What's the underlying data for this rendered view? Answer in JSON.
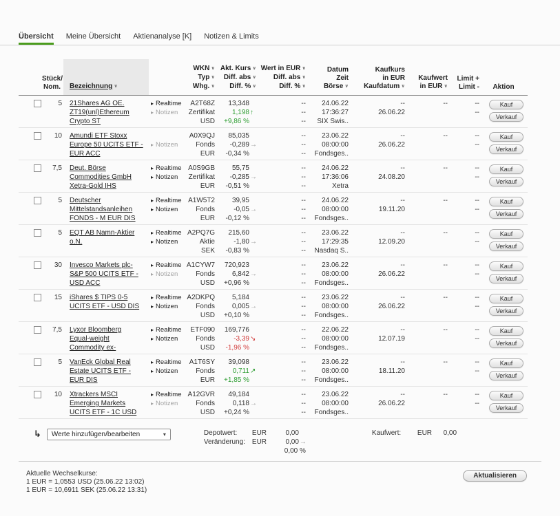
{
  "colors": {
    "accent_green": "#4a9c1d",
    "positive_green": "#2f9e33",
    "negative_red": "#d23b3b"
  },
  "tabs": [
    {
      "label": "Übersicht",
      "active": true
    },
    {
      "label": "Meine Übersicht",
      "active": false
    },
    {
      "label": "Aktienanalyse [K]",
      "active": false
    },
    {
      "label": "Notizen & Limits",
      "active": false
    }
  ],
  "table": {
    "header": [
      {
        "key": "select",
        "align": "left",
        "sortable": false,
        "lines": []
      },
      {
        "key": "qty",
        "align": "right",
        "sortable": false,
        "lines": [
          {
            "t": "Stück/"
          },
          {
            "t": "Nom."
          }
        ]
      },
      {
        "key": "name",
        "align": "left",
        "sortable": true,
        "highlight": true,
        "lines": [
          {
            "t": "Bezeichnung",
            "caret": true,
            "u": true
          }
        ]
      },
      {
        "key": "info",
        "align": "left",
        "sortable": false,
        "lines": []
      },
      {
        "key": "wkn",
        "align": "right",
        "sortable": true,
        "lines": [
          {
            "t": "WKN",
            "caret": true
          },
          {
            "t": "Typ",
            "caret": true
          },
          {
            "t": "Whg.",
            "caret": true
          }
        ]
      },
      {
        "key": "kurs",
        "align": "right",
        "sortable": true,
        "lines": [
          {
            "t": "Akt. Kurs",
            "caret": true
          },
          {
            "t": "Diff. abs",
            "caret": true
          },
          {
            "t": "Diff. %",
            "caret": true
          }
        ]
      },
      {
        "key": "wert",
        "align": "right",
        "sortable": true,
        "lines": [
          {
            "t": "Wert in EUR",
            "caret": true
          },
          {
            "t": "Diff. abs",
            "caret": true
          },
          {
            "t": "Diff. %",
            "caret": true
          }
        ]
      },
      {
        "key": "datum",
        "align": "right",
        "sortable": true,
        "lines": [
          {
            "t": "Datum"
          },
          {
            "t": "Zeit"
          },
          {
            "t": "Börse",
            "caret": true
          }
        ]
      },
      {
        "key": "kaufkurs",
        "align": "right",
        "sortable": true,
        "lines": [
          {
            "t": "Kaufkurs"
          },
          {
            "t": "in EUR"
          },
          {
            "t": "Kaufdatum",
            "caret": true
          }
        ]
      },
      {
        "key": "kaufwert",
        "align": "right",
        "sortable": true,
        "lines": [
          {
            "t": "Kaufwert"
          },
          {
            "t": "in EUR",
            "caret": true
          }
        ]
      },
      {
        "key": "limit",
        "align": "right",
        "sortable": false,
        "lines": [
          {
            "t": "Limit +"
          },
          {
            "t": "Limit -"
          }
        ]
      },
      {
        "key": "aktion",
        "align": "center",
        "sortable": false,
        "lines": [
          {
            "t": "Aktion"
          }
        ]
      }
    ],
    "action_labels": [
      "Kauf",
      "Verkauf"
    ],
    "rows": [
      {
        "qty": "5",
        "name": [
          "21Shares AG OE.",
          "ZT19(unl)Ethereum",
          "Crypto ST"
        ],
        "buttons": [
          {
            "label": "Realtime",
            "muted": false
          },
          {
            "label": "Notizen",
            "muted": true
          }
        ],
        "wkn": "A2T68Z",
        "typ": "Zertifikat",
        "whg": "USD",
        "kurs": "13,348",
        "diff_abs": "1,198",
        "arrow": "up",
        "trend": "up",
        "diff_pct": "+9,86 %",
        "wert": [
          "--",
          "--",
          "--"
        ],
        "datum": "24.06.22",
        "zeit": "17:36:27",
        "boerse": "SIX Swis..",
        "kaufkurs": "--",
        "kaufdatum": "26.06.22",
        "kaufwert": "--",
        "limit_plus": "--",
        "limit_minus": "--"
      },
      {
        "qty": "10",
        "name": [
          "Amundi ETF Stoxx",
          "Europe 50 UCITS ETF -",
          "EUR ACC"
        ],
        "buttons": [
          {
            "label": "Notizen",
            "muted": true
          }
        ],
        "wkn": "A0X9QJ",
        "typ": "Fonds",
        "whg": "EUR",
        "kurs": "85,035",
        "diff_abs": "-0,289",
        "arrow": "right",
        "trend": "neutral",
        "diff_pct": "-0,34 %",
        "wert": [
          "--",
          "--",
          "--"
        ],
        "datum": "23.06.22",
        "zeit": "08:00:00",
        "boerse": "Fondsges..",
        "kaufkurs": "--",
        "kaufdatum": "26.06.22",
        "kaufwert": "--",
        "limit_plus": "--",
        "limit_minus": "--"
      },
      {
        "qty": "7,5",
        "name": [
          "Deut. Börse",
          "Commodities GmbH",
          "Xetra-Gold IHS"
        ],
        "buttons": [
          {
            "label": "Realtime",
            "muted": false
          },
          {
            "label": "Notizen",
            "muted": false
          }
        ],
        "wkn": "A0S9GB",
        "typ": "Zertifikat",
        "whg": "EUR",
        "kurs": "55,75",
        "diff_abs": "-0,285",
        "arrow": "right",
        "trend": "neutral",
        "diff_pct": "-0,51 %",
        "wert": [
          "--",
          "--",
          "--"
        ],
        "datum": "24.06.22",
        "zeit": "17:36:06",
        "boerse": "Xetra",
        "kaufkurs": "--",
        "kaufdatum": "24.08.20",
        "kaufwert": "--",
        "limit_plus": "--",
        "limit_minus": "--"
      },
      {
        "qty": "5",
        "name": [
          "Deutscher",
          "Mittelstandsanleihen",
          "FONDS - M EUR DIS"
        ],
        "buttons": [
          {
            "label": "Realtime",
            "muted": false
          },
          {
            "label": "Notizen",
            "muted": false
          }
        ],
        "wkn": "A1W5T2",
        "typ": "Fonds",
        "whg": "EUR",
        "kurs": "39,95",
        "diff_abs": "-0,05",
        "arrow": "right",
        "trend": "neutral",
        "diff_pct": "-0,12 %",
        "wert": [
          "--",
          "--",
          "--"
        ],
        "datum": "24.06.22",
        "zeit": "08:00:00",
        "boerse": "Fondsges..",
        "kaufkurs": "--",
        "kaufdatum": "19.11.20",
        "kaufwert": "--",
        "limit_plus": "--",
        "limit_minus": "--"
      },
      {
        "qty": "5",
        "name": [
          "EQT AB Namn-Aktier",
          "o.N."
        ],
        "buttons": [
          {
            "label": "Realtime",
            "muted": false
          },
          {
            "label": "Notizen",
            "muted": false
          }
        ],
        "wkn": "A2PQ7G",
        "typ": "Aktie",
        "whg": "SEK",
        "kurs": "215,60",
        "diff_abs": "-1,80",
        "arrow": "right",
        "trend": "neutral",
        "diff_pct": "-0,83 %",
        "wert": [
          "--",
          "--",
          "--"
        ],
        "datum": "23.06.22",
        "zeit": "17:29:35",
        "boerse": "Nasdaq S..",
        "kaufkurs": "--",
        "kaufdatum": "12.09.20",
        "kaufwert": "--",
        "limit_plus": "--",
        "limit_minus": "--"
      },
      {
        "qty": "30",
        "name": [
          "Invesco Markets plc-",
          "S&P 500 UCITS ETF -",
          "USD ACC"
        ],
        "buttons": [
          {
            "label": "Realtime",
            "muted": false
          },
          {
            "label": "Notizen",
            "muted": true
          }
        ],
        "wkn": "A1CYW7",
        "typ": "Fonds",
        "whg": "USD",
        "kurs": "720,923",
        "diff_abs": "6,842",
        "arrow": "right",
        "trend": "neutral",
        "diff_pct": "+0,96 %",
        "wert": [
          "--",
          "--",
          "--"
        ],
        "datum": "23.06.22",
        "zeit": "08:00:00",
        "boerse": "Fondsges..",
        "kaufkurs": "--",
        "kaufdatum": "26.06.22",
        "kaufwert": "--",
        "limit_plus": "--",
        "limit_minus": "--"
      },
      {
        "qty": "15",
        "name": [
          "iShares $ TIPS 0-5",
          "UCITS ETF - USD DIS"
        ],
        "buttons": [
          {
            "label": "Realtime",
            "muted": false
          },
          {
            "label": "Notizen",
            "muted": false
          }
        ],
        "wkn": "A2DKPQ",
        "typ": "Fonds",
        "whg": "USD",
        "kurs": "5,184",
        "diff_abs": "0,005",
        "arrow": "right",
        "trend": "neutral",
        "diff_pct": "+0,10 %",
        "wert": [
          "--",
          "--",
          "--"
        ],
        "datum": "23.06.22",
        "zeit": "08:00:00",
        "boerse": "Fondsges..",
        "kaufkurs": "--",
        "kaufdatum": "26.06.22",
        "kaufwert": "--",
        "limit_plus": "--",
        "limit_minus": "--"
      },
      {
        "qty": "7,5",
        "name": [
          "Lyxor Bloomberg",
          "Equal-weight",
          "Commodity ex-"
        ],
        "buttons": [
          {
            "label": "Realtime",
            "muted": false
          },
          {
            "label": "Notizen",
            "muted": false
          }
        ],
        "wkn": "ETF090",
        "typ": "Fonds",
        "whg": "USD",
        "kurs": "169,776",
        "diff_abs": "-3,39",
        "arrow": "downright",
        "trend": "down",
        "diff_pct": "-1,96 %",
        "wert": [
          "--",
          "--",
          "--"
        ],
        "datum": "22.06.22",
        "zeit": "08:00:00",
        "boerse": "Fondsges..",
        "kaufkurs": "--",
        "kaufdatum": "12.07.19",
        "kaufwert": "--",
        "limit_plus": "--",
        "limit_minus": "--"
      },
      {
        "qty": "5",
        "name": [
          "VanEck Global Real",
          "Estate UCITS ETF -",
          "EUR DIS"
        ],
        "buttons": [
          {
            "label": "Realtime",
            "muted": false
          },
          {
            "label": "Notizen",
            "muted": false
          }
        ],
        "wkn": "A1T6SY",
        "typ": "Fonds",
        "whg": "EUR",
        "kurs": "39,098",
        "diff_abs": "0,711",
        "arrow": "upright",
        "trend": "up",
        "diff_pct": "+1,85 %",
        "wert": [
          "--",
          "--",
          "--"
        ],
        "datum": "23.06.22",
        "zeit": "08:00:00",
        "boerse": "Fondsges..",
        "kaufkurs": "--",
        "kaufdatum": "18.11.20",
        "kaufwert": "--",
        "limit_plus": "--",
        "limit_minus": "--"
      },
      {
        "qty": "10",
        "name": [
          "Xtrackers MSCI",
          "Emerging Markets",
          "UCITS ETF - 1C USD"
        ],
        "buttons": [
          {
            "label": "Realtime",
            "muted": false
          },
          {
            "label": "Notizen",
            "muted": true
          }
        ],
        "wkn": "A12GVR",
        "typ": "Fonds",
        "whg": "USD",
        "kurs": "49,184",
        "diff_abs": "0,118",
        "arrow": "right",
        "trend": "neutral",
        "diff_pct": "+0,24 %",
        "wert": [
          "--",
          "--",
          "--"
        ],
        "datum": "23.06.22",
        "zeit": "08:00:00",
        "boerse": "Fondsges..",
        "kaufkurs": "--",
        "kaufdatum": "26.06.22",
        "kaufwert": "--",
        "limit_plus": "--",
        "limit_minus": "--"
      }
    ]
  },
  "summary": {
    "select_label": "Werte hinzufügen/bearbeiten",
    "depotwert_label": "Depotwert:",
    "veraenderung_label": "Veränderung:",
    "currency": "EUR",
    "depotwert_value": "0,00",
    "veraenderung_value": "0,00",
    "veraenderung_pct": "0,00 %",
    "kaufwert_label": "Kaufwert:",
    "kaufwert_value": "0,00"
  },
  "footer": {
    "rates_title": "Aktuelle Wechselkurse:",
    "rates": [
      "1 EUR = 1,0553 USD (25.06.22 13:02)",
      "1 EUR = 10,6911 SEK (25.06.22 13:31)"
    ],
    "refresh_label": "Aktualisieren"
  }
}
